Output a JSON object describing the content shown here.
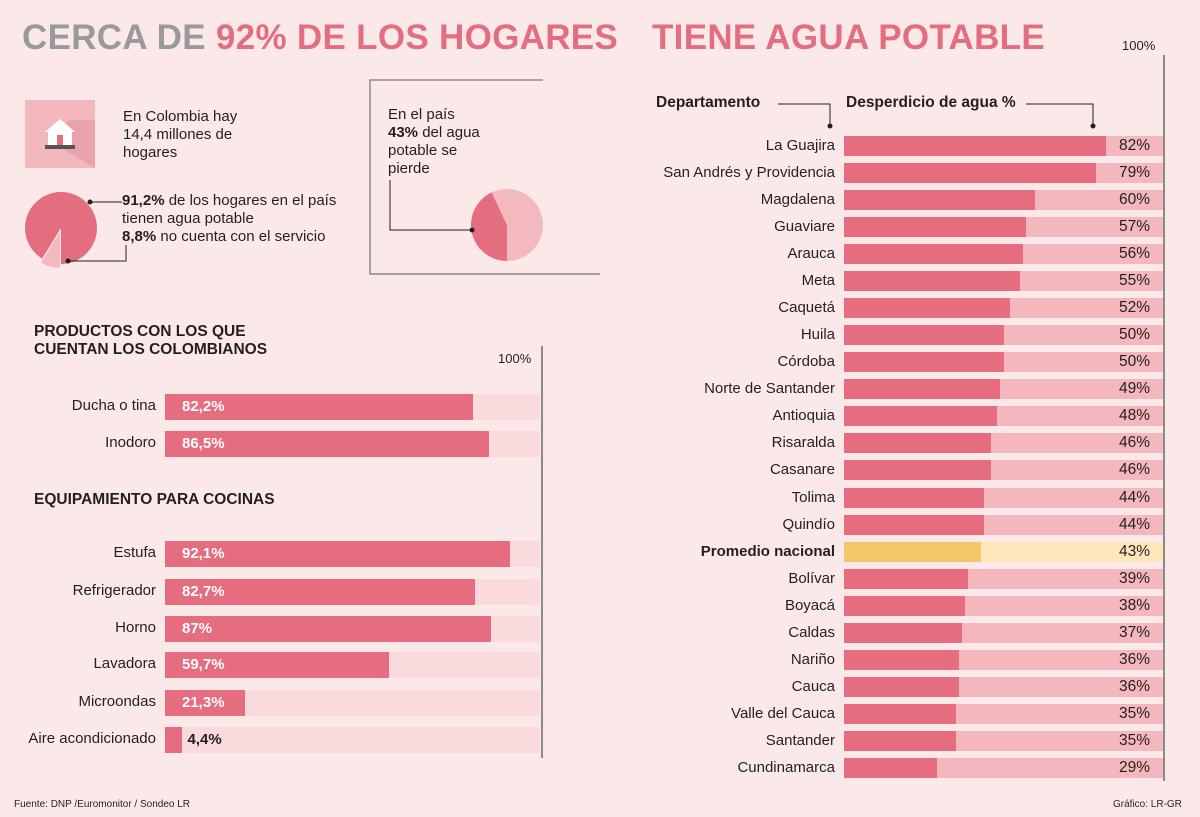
{
  "header": {
    "title_part1": "CERCA DE ",
    "title_part2": "92% DE LOS HOGARES",
    "title_part3": "TIENE AGUA POTABLE"
  },
  "households": {
    "line1": "En Colombia hay",
    "line2": "14,4 millones de",
    "line3": "hogares",
    "icon": "house-icon"
  },
  "water_access": {
    "pct_with": "91,2%",
    "text_with_1": " de los hogares en el país",
    "text_with_2": "tienen agua potable",
    "pct_without": "8,8%",
    "text_without": " no cuenta con el servicio",
    "slices": [
      91.2,
      8.8
    ]
  },
  "water_loss": {
    "line1": "En el país",
    "pct": "43%",
    "line2_rest": " del agua",
    "line3": "potable se",
    "line4": "pierde",
    "slices": [
      43,
      57
    ]
  },
  "colors": {
    "bar": "#e56d7f",
    "track_left": "#fadadd",
    "track_right": "#f4b7bd",
    "highlight": "#f3c667",
    "highlight_track": "#fde7ba",
    "pie_main": "#e36e7f",
    "pie_rest": "#f3b9bf"
  },
  "products": {
    "title_line1": "PRODUCTOS CON LOS QUE",
    "title_line2": "CUENTAN LOS COLOMBIANOS",
    "max_label": "100%"
  },
  "kitchen": {
    "title": "EQUIPAMIENTO PARA COCINAS"
  },
  "waste": {
    "col_dept": "Departamento",
    "col_waste": "Desperdicio de agua %",
    "max_label": "100%"
  },
  "chart_data": [
    {
      "type": "bar",
      "title": "PRODUCTOS CON LOS QUE CUENTAN LOS COLOMBIANOS",
      "categories": [
        "Ducha o tina",
        "Inodoro"
      ],
      "values": [
        82.2,
        86.5
      ],
      "labels": [
        "82,2%",
        "86,5%"
      ],
      "xlim": [
        0,
        100
      ]
    },
    {
      "type": "bar",
      "title": "EQUIPAMIENTO PARA COCINAS",
      "categories": [
        "Estufa",
        "Refrigerador",
        "Horno",
        "Lavadora",
        "Microondas",
        "Aire acondicionado"
      ],
      "values": [
        92.1,
        82.7,
        87,
        59.7,
        21.3,
        4.4
      ],
      "labels": [
        "92,1%",
        "82,7%",
        "87%",
        "59,7%",
        "21,3%",
        "4,4%"
      ],
      "xlim": [
        0,
        100
      ]
    },
    {
      "type": "bar",
      "title": "Desperdicio de agua %",
      "xlabel": "Departamento",
      "categories": [
        "La Guajira",
        "San Andrés y Providencia",
        "Magdalena",
        "Guaviare",
        "Arauca",
        "Meta",
        "Caquetá",
        "Huila",
        "Córdoba",
        "Norte de Santander",
        "Antioquia",
        "Risaralda",
        "Casanare",
        "Tolima",
        "Quindío",
        "Promedio nacional",
        "Bolívar",
        "Boyacá",
        "Caldas",
        "Nariño",
        "Cauca",
        "Valle del Cauca",
        "Santander",
        "Cundinamarca"
      ],
      "values": [
        82,
        79,
        60,
        57,
        56,
        55,
        52,
        50,
        50,
        49,
        48,
        46,
        46,
        44,
        44,
        43,
        39,
        38,
        37,
        36,
        36,
        35,
        35,
        29
      ],
      "labels": [
        "82%",
        "79%",
        "60%",
        "57%",
        "56%",
        "55%",
        "52%",
        "50%",
        "50%",
        "49%",
        "48%",
        "46%",
        "46%",
        "44%",
        "44%",
        "43%",
        "39%",
        "38%",
        "37%",
        "36%",
        "36%",
        "35%",
        "35%",
        "29%"
      ],
      "highlight": "Promedio nacional",
      "xlim": [
        0,
        100
      ]
    }
  ],
  "footer": {
    "source": "Fuente: DNP /Euromonitor / Sondeo LR",
    "credit": "Gráfico: LR-GR"
  }
}
